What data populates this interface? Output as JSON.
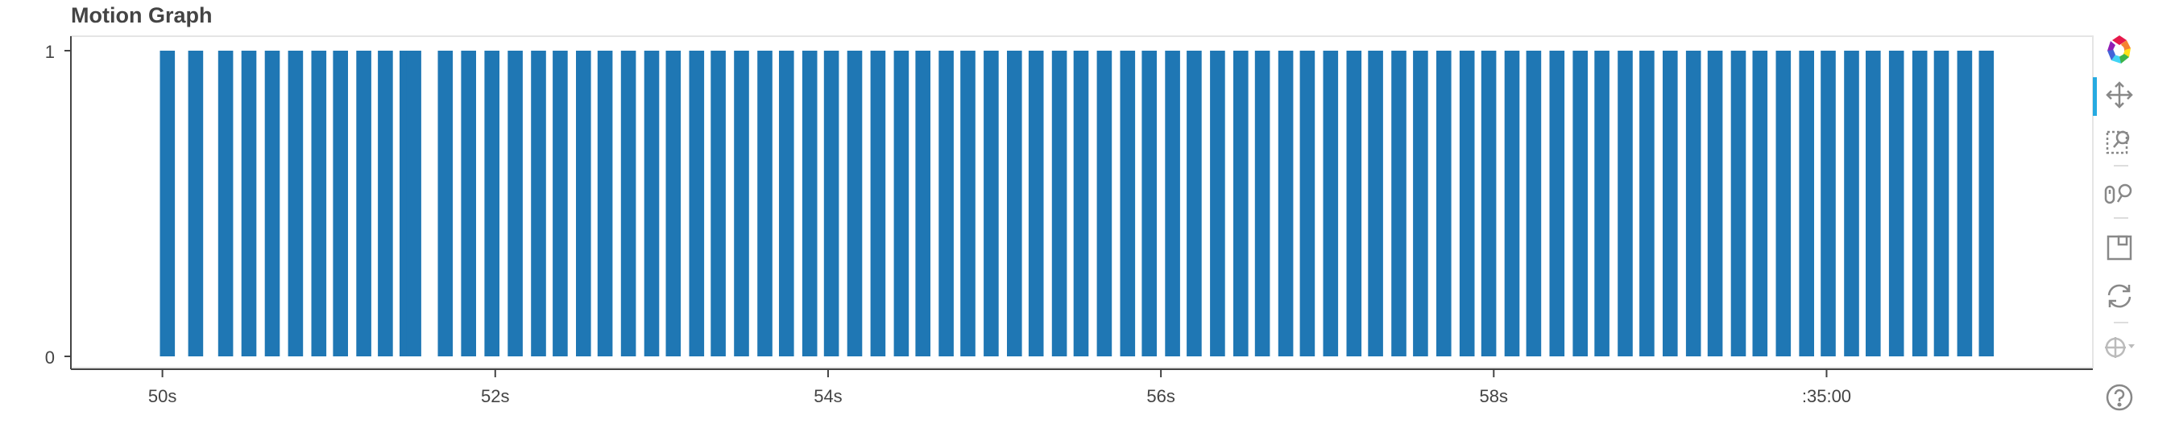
{
  "chart_data": {
    "type": "bar",
    "title": "Motion Graph",
    "xlabel": "",
    "ylabel": "",
    "x_ticks": [
      "50s",
      "52s",
      "54s",
      "56s",
      "58s",
      ":35:00"
    ],
    "y_ticks": [
      "0",
      "1"
    ],
    "ylim": [
      0,
      1
    ],
    "xlim_seconds": [
      49.45,
      61.6
    ],
    "x_unit": "seconds (minute :34, ticks every 2s)",
    "bar_width_seconds": 0.09,
    "series": [
      {
        "x": [
          50.03,
          50.2,
          50.38,
          50.52,
          50.66,
          50.8,
          50.94,
          51.07,
          51.21,
          51.34,
          51.47,
          51.51,
          51.7,
          51.84,
          51.98,
          52.12,
          52.26,
          52.39,
          52.53,
          52.66,
          52.8,
          52.94,
          53.07,
          53.21,
          53.34,
          53.48,
          53.62,
          53.75,
          53.89,
          54.02,
          54.16,
          54.3,
          54.44,
          54.57,
          54.71,
          54.84,
          54.98,
          55.12,
          55.25,
          55.39,
          55.52,
          55.66,
          55.8,
          55.93,
          56.07,
          56.2,
          56.34,
          56.48,
          56.61,
          56.75,
          56.88,
          57.02,
          57.16,
          57.29,
          57.43,
          57.56,
          57.7,
          57.84,
          57.97,
          58.11,
          58.24,
          58.38,
          58.52,
          58.65,
          58.79,
          58.92,
          59.06,
          59.2,
          59.33,
          59.47,
          59.6,
          59.74,
          59.88,
          60.01,
          60.15,
          60.28,
          60.42,
          60.56,
          60.69,
          60.83,
          60.96
        ],
        "values": [
          1,
          1,
          1,
          1,
          1,
          1,
          1,
          1,
          1,
          1,
          1,
          1,
          1,
          1,
          1,
          1,
          1,
          1,
          1,
          1,
          1,
          1,
          1,
          1,
          1,
          1,
          1,
          1,
          1,
          1,
          1,
          1,
          1,
          1,
          1,
          1,
          1,
          1,
          1,
          1,
          1,
          1,
          1,
          1,
          1,
          1,
          1,
          1,
          1,
          1,
          1,
          1,
          1,
          1,
          1,
          1,
          1,
          1,
          1,
          1,
          1,
          1,
          1,
          1,
          1,
          1,
          1,
          1,
          1,
          1,
          1,
          1,
          1,
          1,
          1,
          1,
          1,
          1,
          1,
          1,
          1
        ]
      }
    ],
    "colors": {
      "bar": "#1f77b4",
      "axis": "#444444",
      "frame": "#e5e5e5"
    },
    "grid": false,
    "legend": "none"
  },
  "toolbar": {
    "items": [
      {
        "icon": "bokeh-logo-icon",
        "active": false
      },
      {
        "icon": "pan-icon",
        "active": true
      },
      {
        "icon": "box-zoom-icon",
        "active": false
      },
      {
        "icon": "wheel-zoom-icon",
        "active": false
      },
      {
        "icon": "save-icon",
        "active": false
      },
      {
        "icon": "reset-icon",
        "active": false
      },
      {
        "icon": "crosshair-icon",
        "active": false
      },
      {
        "icon": "help-icon",
        "active": false
      }
    ]
  }
}
